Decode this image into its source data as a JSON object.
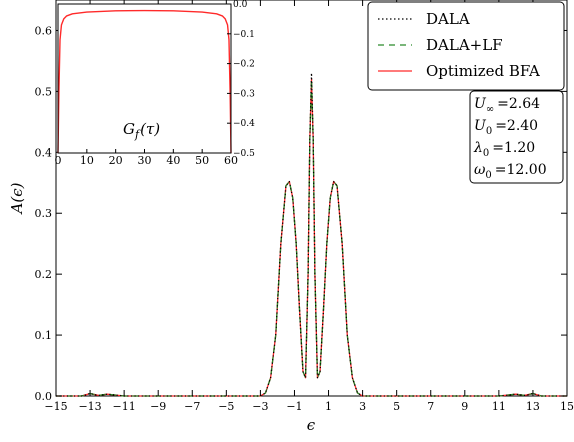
{
  "chart_data": {
    "type": "line",
    "title": "",
    "xlabel": "ϵ",
    "ylabel": "A(ϵ)",
    "xlim": [
      -15,
      15
    ],
    "ylim": [
      0,
      0.65
    ],
    "xticks": [
      -15,
      -13,
      -11,
      -9,
      -7,
      -5,
      -3,
      -1,
      1,
      3,
      5,
      7,
      9,
      11,
      13,
      15
    ],
    "xtick_labels": [
      "−15",
      "−13",
      "−11",
      "−9",
      "−7",
      "−5",
      "−3",
      "−1",
      "1",
      "3",
      "5",
      "7",
      "9",
      "11",
      "13",
      "15"
    ],
    "yticks": [
      0.0,
      0.1,
      0.2,
      0.3,
      0.4,
      0.5,
      0.6
    ],
    "ytick_labels": [
      "0.0",
      "0.1",
      "0.2",
      "0.3",
      "0.4",
      "0.5",
      "0.6"
    ],
    "legend": {
      "placement": "top-right",
      "entries": [
        "DALA",
        "DALA+LF",
        "Optimized BFA"
      ]
    },
    "series": [
      {
        "name": "DALA",
        "color": "#000000",
        "style": "dotted",
        "x": [
          -15,
          -13.5,
          -13,
          -12.5,
          -12,
          -11,
          -5,
          -3,
          -2.7,
          -2.4,
          -2.1,
          -1.8,
          -1.5,
          -1.3,
          -1.1,
          -0.9,
          -0.7,
          -0.5,
          -0.35,
          -0.2,
          -0.1,
          0,
          0.1,
          0.2,
          0.35,
          0.5,
          0.7,
          0.9,
          1.1,
          1.3,
          1.5,
          1.8,
          2.1,
          2.4,
          2.7,
          3,
          5,
          11,
          12,
          12.5,
          13,
          13.5,
          15
        ],
        "y": [
          0,
          0,
          0.004,
          0.001,
          0.003,
          0,
          0,
          0,
          0.005,
          0.03,
          0.1,
          0.25,
          0.345,
          0.352,
          0.325,
          0.25,
          0.14,
          0.04,
          0.03,
          0.2,
          0.42,
          0.53,
          0.42,
          0.2,
          0.03,
          0.04,
          0.14,
          0.25,
          0.325,
          0.352,
          0.345,
          0.25,
          0.1,
          0.03,
          0.005,
          0,
          0,
          0,
          0.003,
          0.001,
          0.004,
          0,
          0
        ]
      },
      {
        "name": "DALA+LF",
        "color": "#2a8a2a",
        "style": "dashed",
        "x": [
          -15,
          -13.5,
          -13,
          -12.5,
          -12,
          -11,
          -5,
          -3,
          -2.7,
          -2.4,
          -2.1,
          -1.8,
          -1.5,
          -1.3,
          -1.1,
          -0.9,
          -0.7,
          -0.5,
          -0.35,
          -0.2,
          -0.1,
          0,
          0.1,
          0.2,
          0.35,
          0.5,
          0.7,
          0.9,
          1.1,
          1.3,
          1.5,
          1.8,
          2.1,
          2.4,
          2.7,
          3,
          5,
          11,
          12,
          12.5,
          13,
          13.5,
          15
        ],
        "y": [
          0,
          0,
          0.004,
          0.001,
          0.003,
          0,
          0,
          0,
          0.005,
          0.03,
          0.1,
          0.25,
          0.345,
          0.352,
          0.325,
          0.25,
          0.14,
          0.04,
          0.03,
          0.2,
          0.42,
          0.52,
          0.42,
          0.2,
          0.03,
          0.04,
          0.14,
          0.25,
          0.325,
          0.352,
          0.345,
          0.25,
          0.1,
          0.03,
          0.005,
          0,
          0,
          0,
          0.003,
          0.001,
          0.004,
          0,
          0
        ]
      },
      {
        "name": "Optimized BFA",
        "color": "#ff2a2a",
        "style": "solid",
        "x": [
          -15,
          -13.5,
          -13,
          -12.5,
          -12,
          -11,
          -5,
          -3,
          -2.7,
          -2.4,
          -2.1,
          -1.8,
          -1.5,
          -1.3,
          -1.1,
          -0.9,
          -0.7,
          -0.5,
          -0.35,
          -0.2,
          -0.1,
          0,
          0.1,
          0.2,
          0.35,
          0.5,
          0.7,
          0.9,
          1.1,
          1.3,
          1.5,
          1.8,
          2.1,
          2.4,
          2.7,
          3,
          5,
          11,
          12,
          12.5,
          13,
          13.5,
          15
        ],
        "y": [
          0,
          0,
          0.004,
          0.001,
          0.003,
          0,
          0,
          0,
          0.005,
          0.03,
          0.1,
          0.25,
          0.345,
          0.352,
          0.325,
          0.25,
          0.14,
          0.04,
          0.03,
          0.2,
          0.42,
          0.52,
          0.42,
          0.2,
          0.03,
          0.04,
          0.14,
          0.25,
          0.325,
          0.352,
          0.345,
          0.25,
          0.1,
          0.03,
          0.005,
          0,
          0,
          0,
          0.003,
          0.001,
          0.004,
          0,
          0
        ]
      }
    ],
    "annotation": {
      "lines": [
        {
          "sym": "U",
          "sub": "∞",
          "val": "=2.64"
        },
        {
          "sym": "U",
          "sub": "0",
          "val": "=2.40"
        },
        {
          "sym": "λ",
          "sub": "0",
          "val": "=1.20"
        },
        {
          "sym": "ω",
          "sub": "0",
          "val": "=12.00"
        }
      ]
    },
    "inset": {
      "type": "line",
      "label": "G_f(τ)",
      "label_sym": "G",
      "label_sub": "f",
      "label_arg": "(τ)",
      "xlim": [
        0,
        60
      ],
      "ylim": [
        -0.5,
        0.0
      ],
      "xticks": [
        0,
        10,
        20,
        30,
        40,
        50,
        60
      ],
      "xtick_labels": [
        "0",
        "10",
        "20",
        "30",
        "40",
        "50",
        "60"
      ],
      "yticks": [
        0.0,
        -0.1,
        -0.2,
        -0.3,
        -0.4,
        -0.5
      ],
      "ytick_labels": [
        "0.0",
        "−0.1",
        "−0.2",
        "−0.3",
        "−0.4",
        "−0.5"
      ],
      "series": [
        {
          "name": "",
          "color": "#ff2a2a",
          "x": [
            0,
            0.3,
            0.7,
            1.2,
            2,
            3,
            5,
            10,
            20,
            30,
            40,
            50,
            55,
            57,
            58,
            58.8,
            59.3,
            59.7,
            60
          ],
          "y": [
            -0.5,
            -0.3,
            -0.12,
            -0.07,
            -0.05,
            -0.04,
            -0.033,
            -0.027,
            -0.023,
            -0.022,
            -0.023,
            -0.027,
            -0.033,
            -0.04,
            -0.05,
            -0.07,
            -0.12,
            -0.3,
            -0.5
          ]
        }
      ]
    }
  }
}
